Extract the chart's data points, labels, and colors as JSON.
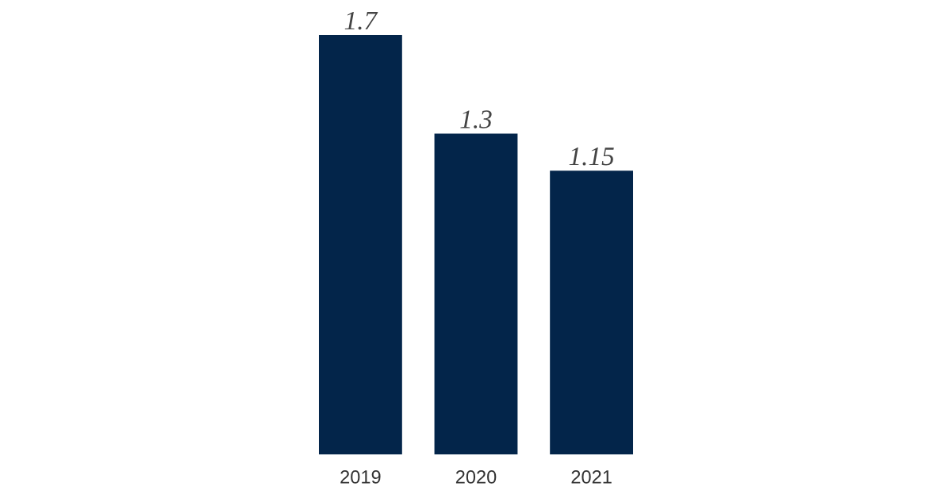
{
  "chart_data": {
    "type": "bar",
    "categories": [
      "2019",
      "2020",
      "2021"
    ],
    "values": [
      1.7,
      1.3,
      1.15
    ],
    "color": "#03254a",
    "data_labels": true,
    "grid": false,
    "legend": false,
    "tick_labels": "x"
  }
}
